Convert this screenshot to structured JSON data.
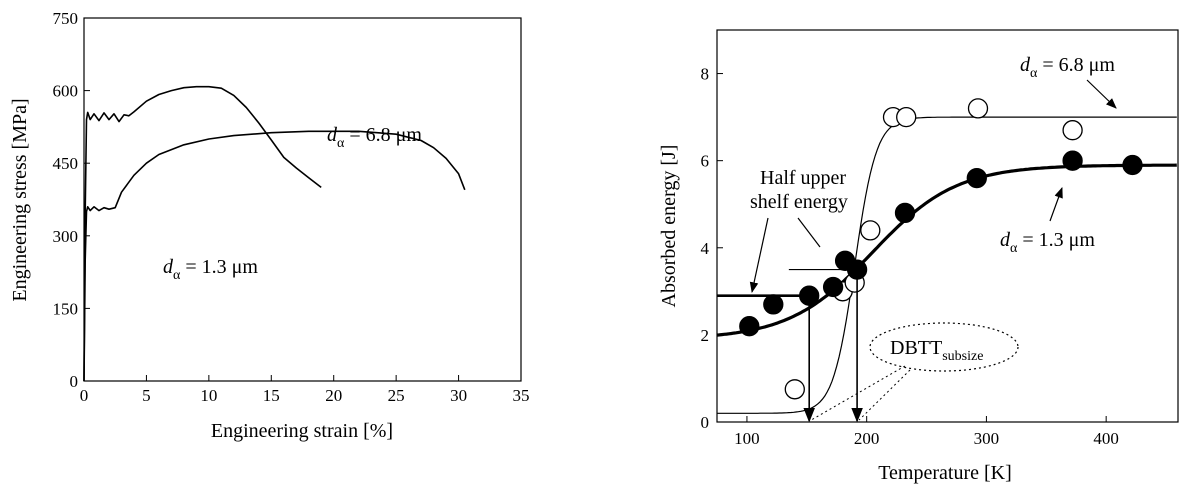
{
  "chart_data": [
    {
      "type": "line",
      "xlabel": "Engineering strain [%]",
      "ylabel": "Engineering stress [MPa]",
      "xlim": [
        0,
        35
      ],
      "ylim": [
        0,
        750
      ],
      "xticks": [
        0,
        5,
        10,
        15,
        20,
        25,
        30,
        35
      ],
      "yticks": [
        0,
        150,
        300,
        450,
        600,
        750
      ],
      "series": [
        {
          "name": "dα = 6.8 μm",
          "x": [
            0,
            0.1,
            0.2,
            0.3,
            0.5,
            0.8,
            1.2,
            1.6,
            2.0,
            2.4,
            2.8,
            3.2,
            3.6,
            4.0,
            5,
            6,
            7,
            8,
            9,
            10,
            11,
            12,
            13,
            14,
            15,
            16,
            17,
            18,
            19
          ],
          "y": [
            0,
            350,
            540,
            555,
            540,
            552,
            538,
            554,
            540,
            552,
            536,
            550,
            548,
            556,
            578,
            592,
            600,
            606,
            608,
            608,
            605,
            590,
            565,
            533,
            498,
            462,
            440,
            420,
            400
          ]
        },
        {
          "name": "dα = 1.3 μm",
          "x": [
            0,
            0.1,
            0.2,
            0.3,
            0.5,
            0.8,
            1.2,
            1.6,
            2.0,
            2.5,
            3,
            4,
            5,
            6,
            8,
            10,
            12,
            15,
            18,
            20,
            22,
            25,
            27,
            28,
            29,
            30,
            30.5
          ],
          "y": [
            0,
            250,
            350,
            360,
            352,
            360,
            352,
            358,
            355,
            358,
            390,
            425,
            450,
            468,
            488,
            500,
            507,
            513,
            516,
            516,
            516,
            510,
            497,
            482,
            460,
            428,
            395
          ]
        }
      ],
      "annotations": [
        {
          "text_main": "d",
          "text_sub": "α",
          "text_rest": " = 6.8 μm"
        },
        {
          "text_main": "d",
          "text_sub": "α",
          "text_rest": " = 1.3 μm"
        }
      ]
    },
    {
      "type": "scatter",
      "xlabel": "Temperature [K]",
      "ylabel": "Absorbed energy [J]",
      "xlim": [
        75,
        460
      ],
      "ylim": [
        0,
        9
      ],
      "xticks": [
        100,
        200,
        300,
        400
      ],
      "yticks": [
        0,
        2,
        4,
        6,
        8
      ],
      "series": [
        {
          "name": "dα = 6.8 μm",
          "marker": "open-circle",
          "points": [
            [
              140,
              0.75
            ],
            [
              180,
              3.0
            ],
            [
              190,
              3.2
            ],
            [
              203,
              4.4
            ],
            [
              222,
              7.0
            ],
            [
              233,
              7.0
            ],
            [
              293,
              7.2
            ],
            [
              372,
              6.7
            ]
          ],
          "fit": {
            "lower": 0.2,
            "upper": 7.0,
            "center": 190,
            "width": 9
          }
        },
        {
          "name": "dα = 1.3 μm",
          "marker": "filled-circle",
          "points": [
            [
              102,
              2.2
            ],
            [
              122,
              2.7
            ],
            [
              152,
              2.9
            ],
            [
              172,
              3.1
            ],
            [
              182,
              3.7
            ],
            [
              192,
              3.5
            ],
            [
              232,
              4.8
            ],
            [
              292,
              5.6
            ],
            [
              372,
              6.0
            ],
            [
              422,
              5.9
            ]
          ],
          "fit": {
            "lower": 1.9,
            "upper": 5.9,
            "center": 205,
            "width": 35
          }
        }
      ],
      "annotations": {
        "label_68": {
          "text_main": "d",
          "text_sub": "α",
          "text_rest": " = 6.8 μm"
        },
        "label_13": {
          "text_main": "d",
          "text_sub": "α",
          "text_rest": " = 1.3 μm"
        },
        "half_shelf_line1": "Half upper",
        "half_shelf_line2": "shelf energy",
        "dbtt_main": "DBTT",
        "dbtt_sub": "subsize",
        "half_shelf_levels": [
          {
            "y": 2.9,
            "x_start": 75,
            "x_end": 152
          },
          {
            "y": 3.5,
            "x_start": 135,
            "x_end": 190
          }
        ],
        "dbtt_values": [
          152,
          192
        ]
      }
    }
  ]
}
